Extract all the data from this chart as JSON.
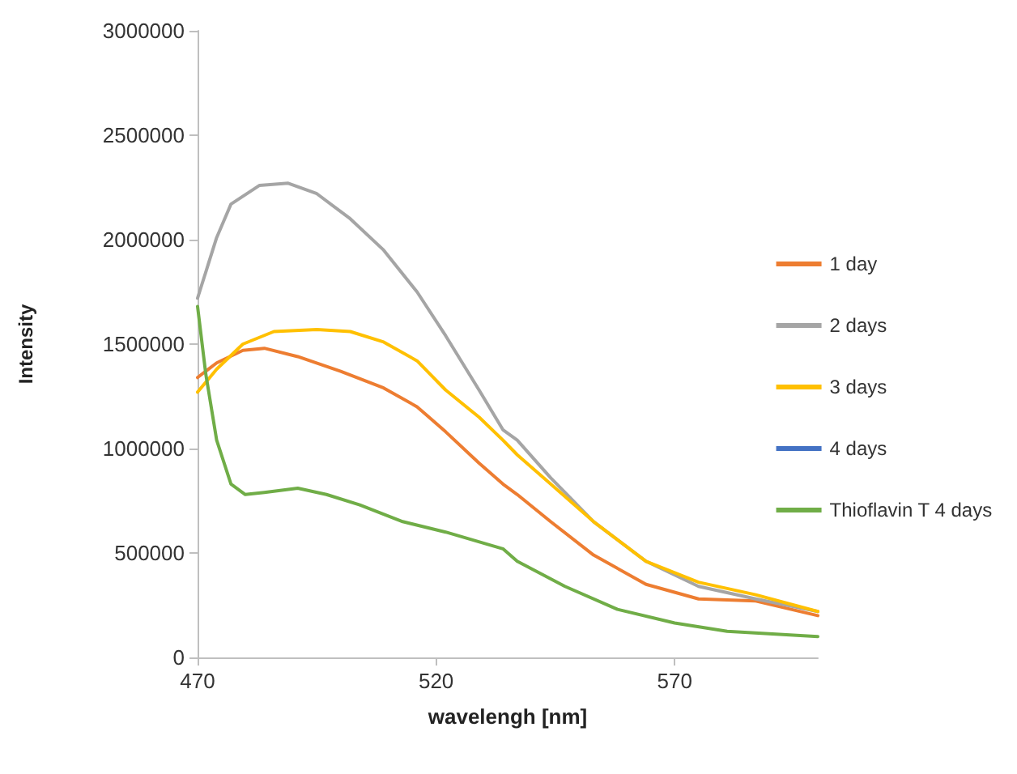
{
  "chart_data": {
    "type": "line",
    "xlabel": "wavelengh [nm]",
    "ylabel": "Intensity",
    "xlim": [
      470,
      600
    ],
    "xticks": [
      470,
      520,
      570
    ],
    "ylim": [
      0,
      3000000
    ],
    "yticks": [
      0,
      500000,
      1000000,
      1500000,
      2000000,
      2500000,
      3000000
    ],
    "grid": false,
    "legend": "right",
    "marker": "none",
    "line_style": "solid",
    "series": [
      {
        "name": "1 day",
        "color": "#ed7d31",
        "x": [
          470,
          474,
          479.5,
          484,
          491,
          500,
          509,
          516,
          522,
          529,
          534,
          537,
          544,
          553,
          564,
          575,
          587,
          600
        ],
        "values": [
          1340000,
          1410000,
          1470000,
          1480000,
          1440000,
          1370000,
          1290000,
          1200000,
          1080000,
          930000,
          830000,
          780000,
          650000,
          490000,
          350000,
          280000,
          270000,
          200000
        ]
      },
      {
        "name": "2 days",
        "color": "#a5a5a5",
        "x": [
          470,
          474,
          477,
          483,
          489,
          495,
          502,
          509,
          516,
          522,
          529,
          534,
          537,
          544,
          553,
          564,
          575,
          587,
          600
        ],
        "values": [
          1720000,
          2010000,
          2170000,
          2260000,
          2270000,
          2220000,
          2100000,
          1950000,
          1750000,
          1540000,
          1280000,
          1090000,
          1040000,
          860000,
          650000,
          460000,
          340000,
          280000,
          220000
        ]
      },
      {
        "name": "3 days",
        "color": "#ffc000",
        "x": [
          470,
          474,
          479.5,
          486,
          495,
          502,
          509,
          516,
          522,
          529,
          534,
          537,
          544,
          553,
          564,
          575,
          587,
          600
        ],
        "values": [
          1270000,
          1380000,
          1500000,
          1560000,
          1570000,
          1560000,
          1510000,
          1420000,
          1280000,
          1150000,
          1040000,
          970000,
          830000,
          650000,
          460000,
          360000,
          300000,
          220000
        ]
      },
      {
        "name": "4 days",
        "color": "#4472c4"
      },
      {
        "name": "Thioflavin T 4 days",
        "color": "#70ad47",
        "x": [
          470,
          471.7,
          474,
          477,
          480,
          484,
          491,
          497,
          504,
          513,
          522,
          534,
          537,
          547,
          558,
          570,
          581,
          600
        ],
        "values": [
          1680000,
          1360000,
          1040000,
          830000,
          780000,
          790000,
          810000,
          780000,
          730000,
          650000,
          600000,
          520000,
          460000,
          340000,
          230000,
          165000,
          125000,
          100000
        ]
      }
    ]
  }
}
